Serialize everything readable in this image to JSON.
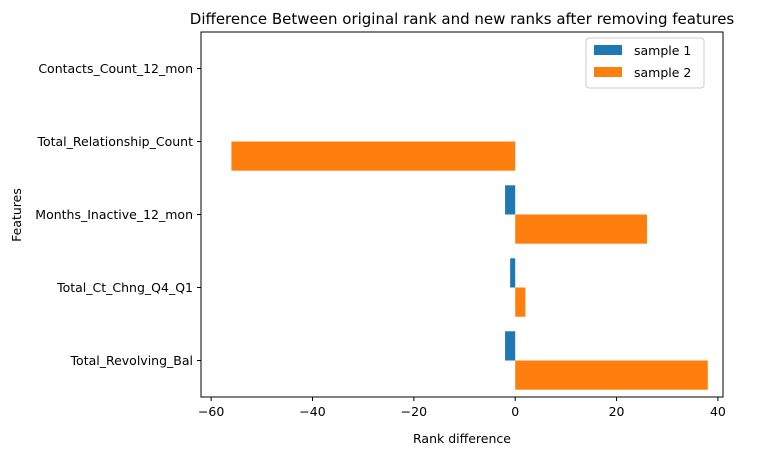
{
  "chart_data": {
    "type": "bar",
    "orientation": "horizontal",
    "title": "Difference Between original rank and new ranks after removing features",
    "xlabel": "Rank difference",
    "ylabel": "Features",
    "categories": [
      "Total_Revolving_Bal",
      "Total_Ct_Chng_Q4_Q1",
      "Months_Inactive_12_mon",
      "Total_Relationship_Count",
      "Contacts_Count_12_mon"
    ],
    "series": [
      {
        "name": "sample 1",
        "color": "#1f77b4",
        "values": [
          -2,
          -1,
          -2,
          0,
          0
        ]
      },
      {
        "name": "sample 2",
        "color": "#ff7f0e",
        "values": [
          38,
          2,
          26,
          -56,
          0
        ]
      }
    ],
    "xlim": [
      -62,
      41
    ],
    "xticks": [
      -60,
      -40,
      -20,
      0,
      20,
      40
    ],
    "grid": false,
    "legend_position": "top-right"
  }
}
